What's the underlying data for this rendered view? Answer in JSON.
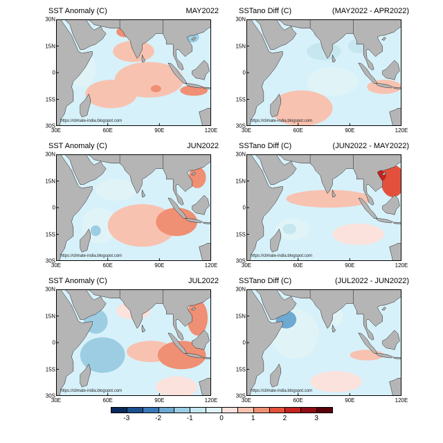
{
  "panels": [
    {
      "left_title": "SST Anomaly (C)",
      "right_title": "MAY2022",
      "credit": "https://climate-india.blogspot.com",
      "blobs": [
        {
          "lon": 75,
          "lat": 12,
          "rx": 12,
          "ry": 6,
          "value": 0.6
        },
        {
          "lon": 62,
          "lat": -12,
          "rx": 15,
          "ry": 8,
          "value": 0.6
        },
        {
          "lon": 84,
          "lat": -4,
          "rx": 20,
          "ry": 10,
          "value": 0.5
        },
        {
          "lon": 110,
          "lat": -10,
          "rx": 8,
          "ry": 3,
          "value": 1.4
        },
        {
          "lon": 88,
          "lat": -9,
          "rx": 3,
          "ry": 2,
          "value": 1.2
        },
        {
          "lon": 70,
          "lat": 23,
          "rx": 5,
          "ry": 3,
          "value": 1.0
        },
        {
          "lon": 109,
          "lat": 20,
          "rx": 4,
          "ry": 3,
          "value": -1.4
        },
        {
          "lon": 45,
          "lat": 2,
          "rx": 8,
          "ry": 10,
          "value": -0.4
        }
      ]
    },
    {
      "left_title": "SSTano Diff (C)",
      "right_title": "(MAY2022 - APR2022)",
      "credit": "https://climate-india.blogspot.com",
      "blobs": [
        {
          "lon": 75,
          "lat": 12,
          "rx": 10,
          "ry": 5,
          "value": -1.0
        },
        {
          "lon": 62,
          "lat": -20,
          "rx": 18,
          "ry": 10,
          "value": 0.5
        },
        {
          "lon": 80,
          "lat": -5,
          "rx": 15,
          "ry": 8,
          "value": -0.3
        },
        {
          "lon": 110,
          "lat": -8,
          "rx": 10,
          "ry": 4,
          "value": 0.7
        },
        {
          "lon": 95,
          "lat": 15,
          "rx": 6,
          "ry": 4,
          "value": -0.7
        }
      ]
    },
    {
      "left_title": "SST Anomaly (C)",
      "right_title": "JUN2022",
      "credit": "https://climate-india.blogspot.com",
      "blobs": [
        {
          "lon": 55,
          "lat": -10,
          "rx": 10,
          "ry": 10,
          "value": -0.5
        },
        {
          "lon": 53,
          "lat": -13,
          "rx": 3,
          "ry": 3,
          "value": -1.2
        },
        {
          "lon": 80,
          "lat": -10,
          "rx": 20,
          "ry": 12,
          "value": 0.6
        },
        {
          "lon": 100,
          "lat": -8,
          "rx": 12,
          "ry": 8,
          "value": 1.3
        },
        {
          "lon": 112,
          "lat": 17,
          "rx": 5,
          "ry": 6,
          "value": 1.2
        },
        {
          "lon": 65,
          "lat": 10,
          "rx": 12,
          "ry": 6,
          "value": -0.4
        }
      ]
    },
    {
      "left_title": "SSTano Diff (C)",
      "right_title": "(JUN2022 - MAY2022)",
      "credit": "https://climate-india.blogspot.com",
      "blobs": [
        {
          "lon": 55,
          "lat": -12,
          "rx": 4,
          "ry": 3,
          "value": -1.0
        },
        {
          "lon": 57,
          "lat": -12,
          "rx": 10,
          "ry": 6,
          "value": -0.4
        },
        {
          "lon": 78,
          "lat": 5,
          "rx": 25,
          "ry": 5,
          "value": 0.5
        },
        {
          "lon": 115,
          "lat": 15,
          "rx": 7,
          "ry": 9,
          "value": 1.5
        },
        {
          "lon": 108,
          "lat": 18,
          "rx": 3,
          "ry": 3,
          "value": 2.1
        },
        {
          "lon": 95,
          "lat": -15,
          "rx": 15,
          "ry": 6,
          "value": 0.4
        }
      ]
    },
    {
      "left_title": "SST Anomaly (C)",
      "right_title": "JUL2022",
      "credit": "https://climate-india.blogspot.com",
      "blobs": [
        {
          "lon": 53,
          "lat": 12,
          "rx": 7,
          "ry": 7,
          "value": -1.3
        },
        {
          "lon": 57,
          "lat": -7,
          "rx": 13,
          "ry": 10,
          "value": -1.1
        },
        {
          "lon": 75,
          "lat": 18,
          "rx": 10,
          "ry": 5,
          "value": 0.4
        },
        {
          "lon": 85,
          "lat": -5,
          "rx": 14,
          "ry": 6,
          "value": 0.5
        },
        {
          "lon": 103,
          "lat": -7,
          "rx": 14,
          "ry": 8,
          "value": 1.3
        },
        {
          "lon": 112,
          "lat": 14,
          "rx": 6,
          "ry": 10,
          "value": 1.2
        },
        {
          "lon": 100,
          "lat": -25,
          "rx": 12,
          "ry": 6,
          "value": 0.3
        }
      ]
    },
    {
      "left_title": "SSTano Diff (C)",
      "right_title": "(JUL2022 - JUN2022)",
      "credit": "https://climate-india.blogspot.com",
      "blobs": [
        {
          "lon": 53,
          "lat": 13,
          "rx": 6,
          "ry": 5,
          "value": -1.6
        },
        {
          "lon": 58,
          "lat": 5,
          "rx": 14,
          "ry": 14,
          "value": -0.5
        },
        {
          "lon": 80,
          "lat": 15,
          "rx": 6,
          "ry": 6,
          "value": -0.3
        },
        {
          "lon": 100,
          "lat": -7,
          "rx": 10,
          "ry": 3,
          "value": 0.5
        },
        {
          "lon": 82,
          "lat": -22,
          "rx": 15,
          "ry": 6,
          "value": 0.3
        }
      ]
    }
  ],
  "axes": {
    "lat_ticks": [
      "30N",
      "15N",
      "0",
      "15S",
      "30S"
    ],
    "lat_values": [
      30,
      15,
      0,
      -15,
      -30
    ],
    "lon_ticks": [
      "30E",
      "60E",
      "90E",
      "120E"
    ],
    "lon_values": [
      30,
      60,
      90,
      120
    ],
    "lon_range": [
      30,
      120
    ],
    "lat_range": [
      -30,
      30
    ]
  },
  "colorbar": {
    "labels": [
      "-3",
      "-2",
      "-1",
      "0",
      "1",
      "2",
      "3"
    ],
    "label_values": [
      -3,
      -2,
      -1,
      0,
      1,
      2,
      3
    ],
    "boundaries": [
      -3.5,
      -3,
      -2.5,
      -2,
      -1.5,
      -1,
      -0.5,
      0,
      0.5,
      1,
      1.5,
      2,
      2.5,
      3,
      3.5
    ],
    "colors": [
      "#0a2a5c",
      "#1d4f8f",
      "#3a79b8",
      "#6ea9d2",
      "#9ccde3",
      "#c6e7f0",
      "#e0f4f8",
      "#fbe2dc",
      "#f8c2b0",
      "#ef8f74",
      "#e3513c",
      "#c6221f",
      "#8f0d14",
      "#5a0009"
    ]
  },
  "land_color": "#b5b5b5",
  "ocean_color": "#d7f1fa"
}
